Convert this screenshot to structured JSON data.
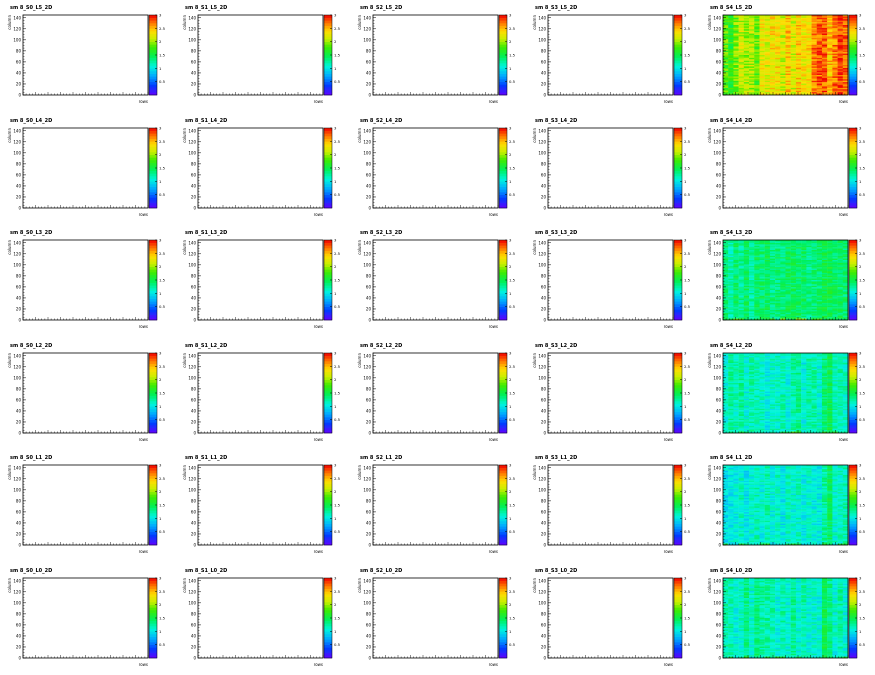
{
  "chart_data": {
    "type": "heatmap",
    "ylabel": "column",
    "xlabel": "rows",
    "yticks": [
      0,
      20,
      40,
      60,
      80,
      100,
      120,
      140
    ],
    "colorbar_ticks": [
      "0.5",
      "1",
      "1.5",
      "2",
      "2.5",
      "3"
    ],
    "zlim": [
      0,
      3
    ],
    "layers": [
      "L5",
      "L4",
      "L3",
      "L2",
      "L1",
      "L0"
    ],
    "sectors": [
      "S0",
      "S1",
      "S2",
      "S3",
      "S4"
    ],
    "panels": [
      {
        "title": "sm 8_S0_L5_2D",
        "filled": false,
        "level": 0
      },
      {
        "title": "sm 8_S1_L5_2D",
        "filled": false,
        "level": 0
      },
      {
        "title": "sm 8_S2_L5_2D",
        "filled": false,
        "level": 0
      },
      {
        "title": "sm 8_S3_L5_2D",
        "filled": false,
        "level": 0
      },
      {
        "title": "sm 8_S4_L5_2D",
        "filled": true,
        "level": 2.3
      },
      {
        "title": "sm 8_S0_L4_2D",
        "filled": false,
        "level": 0
      },
      {
        "title": "sm 8_S1_L4_2D",
        "filled": false,
        "level": 0
      },
      {
        "title": "sm 8_S2_L4_2D",
        "filled": false,
        "level": 0
      },
      {
        "title": "sm 8_S3_L4_2D",
        "filled": false,
        "level": 0
      },
      {
        "title": "sm 8_S4_L4_2D",
        "filled": false,
        "level": 0
      },
      {
        "title": "sm 8_S0_L3_2D",
        "filled": false,
        "level": 0
      },
      {
        "title": "sm 8_S1_L3_2D",
        "filled": false,
        "level": 0
      },
      {
        "title": "sm 8_S2_L3_2D",
        "filled": false,
        "level": 0
      },
      {
        "title": "sm 8_S3_L3_2D",
        "filled": false,
        "level": 0
      },
      {
        "title": "sm 8_S4_L3_2D",
        "filled": true,
        "level": 1.35
      },
      {
        "title": "sm 8_S0_L2_2D",
        "filled": false,
        "level": 0
      },
      {
        "title": "sm 8_S1_L2_2D",
        "filled": false,
        "level": 0
      },
      {
        "title": "sm 8_S2_L2_2D",
        "filled": false,
        "level": 0
      },
      {
        "title": "sm 8_S3_L2_2D",
        "filled": false,
        "level": 0
      },
      {
        "title": "sm 8_S4_L2_2D",
        "filled": true,
        "level": 1.15
      },
      {
        "title": "sm 8_S0_L1_2D",
        "filled": false,
        "level": 0
      },
      {
        "title": "sm 8_S1_L1_2D",
        "filled": false,
        "level": 0
      },
      {
        "title": "sm 8_S2_L1_2D",
        "filled": false,
        "level": 0
      },
      {
        "title": "sm 8_S3_L1_2D",
        "filled": false,
        "level": 0
      },
      {
        "title": "sm 8_S4_L1_2D",
        "filled": true,
        "level": 1.1
      },
      {
        "title": "sm 8_S0_L0_2D",
        "filled": false,
        "level": 0
      },
      {
        "title": "sm 8_S1_L0_2D",
        "filled": false,
        "level": 0
      },
      {
        "title": "sm 8_S2_L0_2D",
        "filled": false,
        "level": 0
      },
      {
        "title": "sm 8_S3_L0_2D",
        "filled": false,
        "level": 0
      },
      {
        "title": "sm 8_S4_L0_2D",
        "filled": true,
        "level": 1.2
      }
    ]
  }
}
